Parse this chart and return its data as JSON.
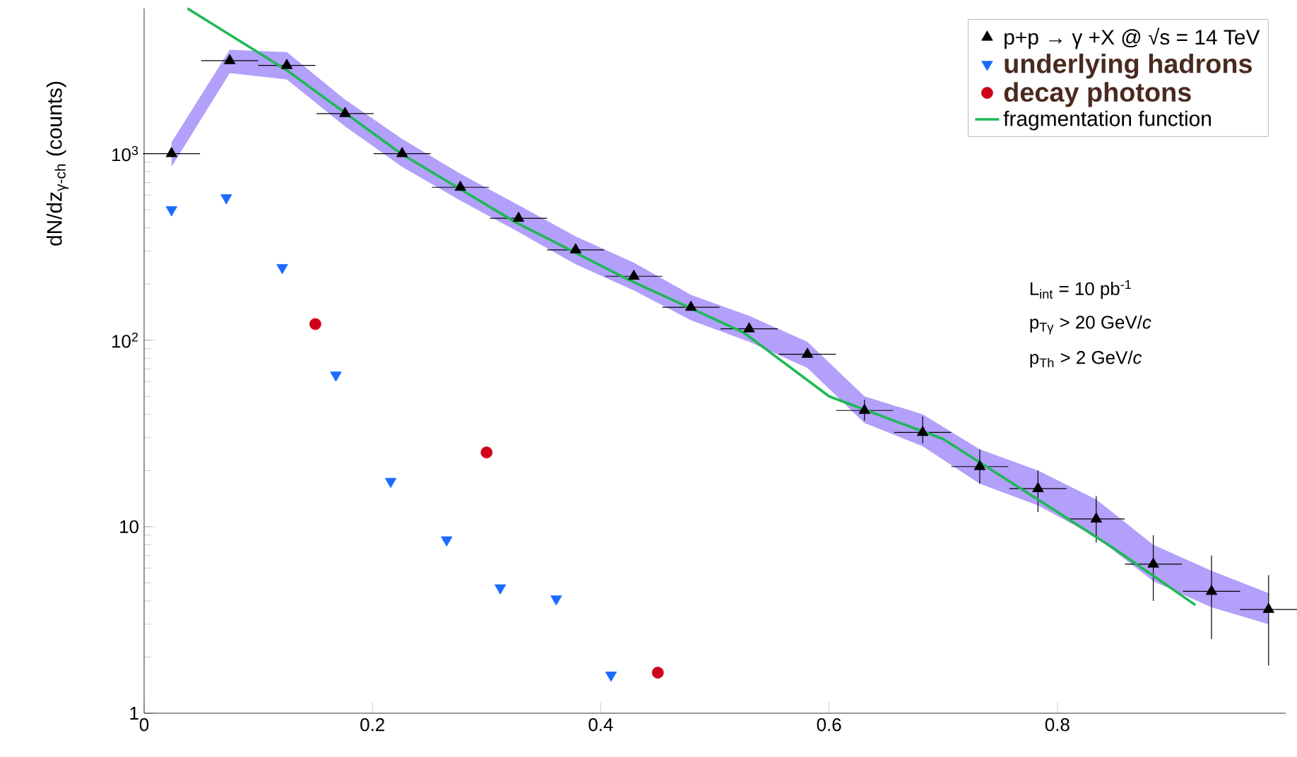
{
  "chart_data": {
    "type": "scatter",
    "ylabel": "dN/dz$_{γ-ch}$ (counts)",
    "log": "y",
    "xlim": [
      0,
      1.0
    ],
    "ylim": [
      1,
      6000
    ],
    "xticks": [
      0,
      0.2,
      0.4,
      0.6,
      0.8
    ],
    "yticks": [
      1,
      10,
      {
        "value": 100,
        "label": "10$^{2}$"
      },
      {
        "value": 1000,
        "label": "10$^{3}$"
      }
    ],
    "legend": "top right",
    "grid": false,
    "series": [
      {
        "name": "p+p → γ +X @ √s = 14 TeV",
        "marker": "triangle",
        "color": "#000000",
        "x": [
          0.024,
          0.075,
          0.125,
          0.176,
          0.226,
          0.277,
          0.328,
          0.378,
          0.429,
          0.479,
          0.53,
          0.581,
          0.631,
          0.682,
          0.732,
          0.783,
          0.834,
          0.884,
          0.935,
          0.985
        ],
        "values": [
          1000,
          3150,
          2970,
          1640,
          1000,
          660,
          450,
          305,
          220,
          150,
          115,
          84,
          42,
          32,
          21,
          16,
          11,
          6.3,
          4.5,
          3.6
        ],
        "xerrors": [
          0.025,
          0.025,
          0.025,
          0.025,
          0.025,
          0.025,
          0.025,
          0.025,
          0.025,
          0.025,
          0.025,
          0.025,
          0.025,
          0.025,
          0.025,
          0.025,
          0.025,
          0.025,
          0.025,
          0.025
        ],
        "errors": [
          null,
          null,
          null,
          null,
          null,
          null,
          null,
          null,
          null,
          null,
          null,
          null,
          [
            37,
            48
          ],
          [
            28,
            39
          ],
          [
            17,
            26
          ],
          [
            12,
            20
          ],
          [
            8.2,
            14.6
          ],
          [
            4.0,
            9.0
          ],
          [
            2.5,
            7.0
          ],
          [
            1.8,
            5.5
          ]
        ],
        "upper": [
          1150,
          3600,
          3500,
          1950,
          1200,
          780,
          530,
          360,
          260,
          175,
          135,
          98,
          50,
          40,
          26,
          20,
          14,
          8,
          5.8,
          4.4
        ],
        "lower": [
          850,
          2700,
          2500,
          1400,
          850,
          560,
          380,
          255,
          185,
          128,
          98,
          71,
          36,
          27,
          17,
          13,
          8.8,
          5.1,
          3.7,
          3.0
        ]
      },
      {
        "name": "underlying hadrons",
        "marker": "triangle-down",
        "color": "#1a6cff",
        "x": [
          0.024,
          0.072,
          0.121,
          0.168,
          0.216,
          0.265,
          0.312,
          0.361,
          0.409
        ],
        "values": [
          500,
          580,
          245,
          65,
          17.5,
          8.5,
          4.7,
          4.1,
          1.6
        ]
      },
      {
        "name": "decay photons",
        "marker": "circle",
        "color": "#d0021b",
        "x": [
          0.15,
          0.3,
          0.45
        ],
        "values": [
          122,
          25,
          1.65
        ]
      },
      {
        "name": "fragmentation function",
        "type": "line",
        "marker": "none",
        "color": "#1db954",
        "x": [
          0.038,
          0.125,
          0.225,
          0.325,
          0.425,
          0.525,
          0.6,
          0.7,
          0.8,
          0.85,
          0.921
        ],
        "values": [
          6000,
          2800,
          1000,
          430,
          210,
          110,
          50,
          29.5,
          12,
          7.6,
          3.8
        ]
      }
    ],
    "annotations": [
      "L$_{int}$  = 10 pb$^{-1}$",
      "p$_{Tγ}$  > 20 GeV/*c*",
      "p$_{Th}$  >  2 GeV/*c*"
    ]
  }
}
